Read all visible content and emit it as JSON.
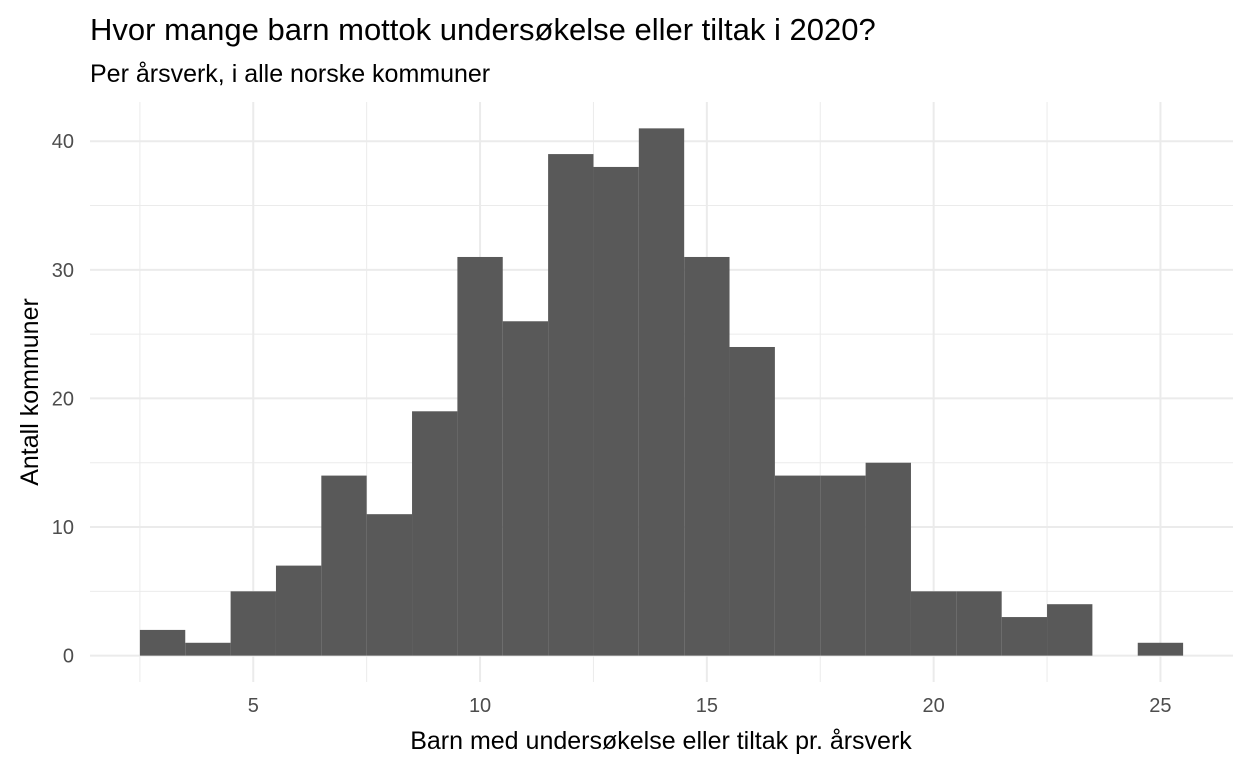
{
  "title": "Hvor mange barn mottok undersøkelse eller tiltak i 2020?",
  "subtitle": "Per årsverk, i alle norske kommuner",
  "chart_data": {
    "type": "bar",
    "title": "Hvor mange barn mottok undersøkelse eller tiltak i 2020?",
    "subtitle": "Per årsverk, i alle norske kommuner",
    "xlabel": "Barn med undersøkelse eller tiltak pr. årsverk",
    "ylabel": "Antall kommuner",
    "bins": [
      {
        "x0": 2.5,
        "x1": 3.5,
        "count": 2
      },
      {
        "x0": 3.5,
        "x1": 4.5,
        "count": 1
      },
      {
        "x0": 4.5,
        "x1": 5.5,
        "count": 5
      },
      {
        "x0": 5.5,
        "x1": 6.5,
        "count": 7
      },
      {
        "x0": 6.5,
        "x1": 7.5,
        "count": 14
      },
      {
        "x0": 7.5,
        "x1": 8.5,
        "count": 11
      },
      {
        "x0": 8.5,
        "x1": 9.5,
        "count": 19
      },
      {
        "x0": 9.5,
        "x1": 10.5,
        "count": 31
      },
      {
        "x0": 10.5,
        "x1": 11.5,
        "count": 26
      },
      {
        "x0": 11.5,
        "x1": 12.5,
        "count": 39
      },
      {
        "x0": 12.5,
        "x1": 13.5,
        "count": 38
      },
      {
        "x0": 13.5,
        "x1": 14.5,
        "count": 41
      },
      {
        "x0": 14.5,
        "x1": 15.5,
        "count": 31
      },
      {
        "x0": 15.5,
        "x1": 16.5,
        "count": 24
      },
      {
        "x0": 16.5,
        "x1": 17.5,
        "count": 14
      },
      {
        "x0": 17.5,
        "x1": 18.5,
        "count": 14
      },
      {
        "x0": 18.5,
        "x1": 19.5,
        "count": 15
      },
      {
        "x0": 19.5,
        "x1": 20.5,
        "count": 5
      },
      {
        "x0": 20.5,
        "x1": 21.5,
        "count": 5
      },
      {
        "x0": 21.5,
        "x1": 22.5,
        "count": 3
      },
      {
        "x0": 22.5,
        "x1": 23.5,
        "count": 4
      },
      {
        "x0": 23.5,
        "x1": 24.5,
        "count": 0
      },
      {
        "x0": 24.5,
        "x1": 25.5,
        "count": 1
      }
    ],
    "xlim": [
      1.4,
      26.6
    ],
    "ylim": [
      -2.05,
      43.05
    ],
    "xticks": [
      5,
      10,
      15,
      20,
      25
    ],
    "xticks_minor": [
      2.5,
      7.5,
      12.5,
      17.5,
      22.5
    ],
    "yticks": [
      0,
      10,
      20,
      30,
      40
    ],
    "yticks_minor": [
      5,
      15,
      25,
      35
    ],
    "grid": true,
    "bar_color": "#595959",
    "grid_color": "#ebebeb"
  }
}
